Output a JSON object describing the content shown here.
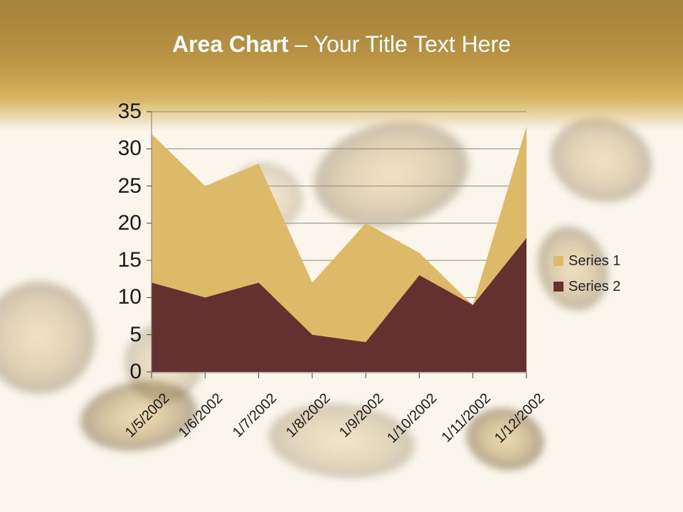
{
  "slide": {
    "title": {
      "emphasis": "Area Chart",
      "separator_and_subtitle": "– Your Title Text Here"
    }
  },
  "chart_data": {
    "type": "area",
    "stacked": false,
    "title": "",
    "xlabel": "",
    "ylabel": "",
    "categories": [
      "1/5/2002",
      "1/6/2002",
      "1/7/2002",
      "1/8/2002",
      "1/9/2002",
      "1/10/2002",
      "1/11/2002",
      "1/12/2002"
    ],
    "series": [
      {
        "name": "Series 1",
        "color": "#DCBA67",
        "values": [
          32,
          25,
          28,
          12,
          20,
          16,
          9,
          33
        ]
      },
      {
        "name": "Series 2",
        "color": "#643130",
        "values": [
          12,
          10,
          12,
          5,
          4,
          13,
          9,
          18
        ]
      }
    ],
    "ylim": [
      0,
      35
    ],
    "ytick_step": 5,
    "ytick_labels": [
      "0",
      "5",
      "10",
      "15",
      "20",
      "25",
      "30",
      "35"
    ],
    "grid": true,
    "legend_position": "right"
  },
  "colors": {
    "background": "#FAF6EC",
    "header_gold_top": "#A5833A",
    "header_gold_bottom": "#D4AE55",
    "title_text": "#FFFFFF",
    "gridline": "#8C8880",
    "axis_line": "#7F7B75",
    "tick_mark": "#404040",
    "axis_label_text": "#1A1A1A",
    "legend_text": "#262626"
  }
}
